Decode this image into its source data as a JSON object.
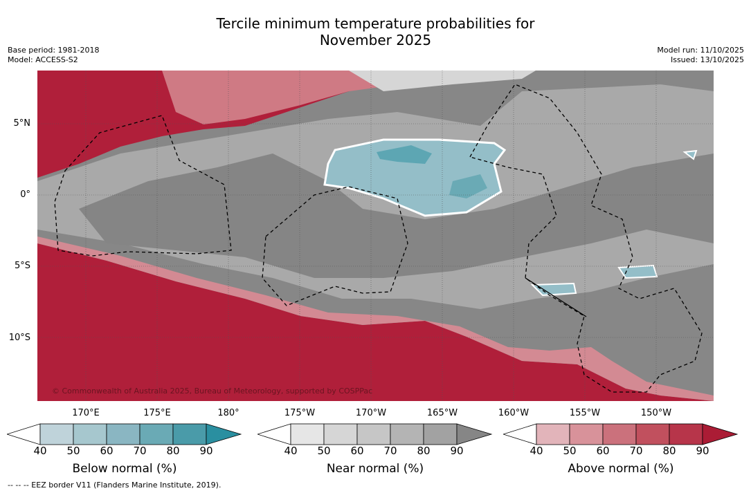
{
  "title": {
    "line1": "Tercile minimum temperature probabilities for",
    "line2": "November 2025"
  },
  "meta": {
    "base_period": "Base period: 1981-2018",
    "model": "Model: ACCESS-S2",
    "model_run": "Model run: 11/10/2025",
    "issued": "Issued: 13/10/2025"
  },
  "map": {
    "latitude_labels": [
      "5°N",
      "0°",
      "5°S",
      "10°S"
    ],
    "longitude_labels": [
      "170°E",
      "175°E",
      "180°",
      "175°W",
      "170°W",
      "165°W",
      "160°W",
      "155°W",
      "150°W"
    ],
    "copyright": "© Commonwealth of Australia 2025, Bureau of Meteorology, supported by COSPPac"
  },
  "colorbars": [
    {
      "label": "Below normal (%)",
      "ticks": [
        "40",
        "50",
        "60",
        "70",
        "80",
        "90"
      ],
      "colors": [
        "#ffffff",
        "#bfd3da",
        "#a6c7ce",
        "#8ab6c2",
        "#6aaab5",
        "#4a9ba9",
        "#2a8fa0"
      ]
    },
    {
      "label": "Near normal (%)",
      "ticks": [
        "40",
        "50",
        "60",
        "70",
        "80",
        "90"
      ],
      "colors": [
        "#ffffff",
        "#e6e6e6",
        "#d6d6d6",
        "#c6c6c6",
        "#b4b4b4",
        "#a2a2a2",
        "#868686"
      ]
    },
    {
      "label": "Above normal (%)",
      "ticks": [
        "40",
        "50",
        "60",
        "70",
        "80",
        "90"
      ],
      "colors": [
        "#ffffff",
        "#e2b4ba",
        "#d8929a",
        "#cb717c",
        "#c1505e",
        "#b7354a",
        "#ab1c35"
      ]
    }
  ],
  "footnote": "--  --  -- EEZ border V11 (Flanders Marine Institute, 2019)."
}
